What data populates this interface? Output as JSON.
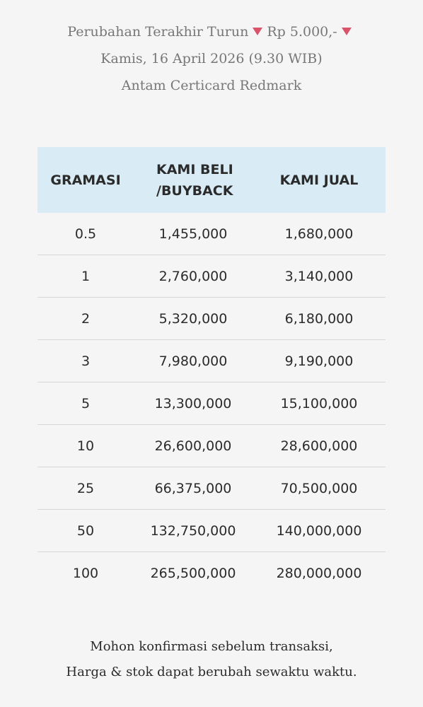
{
  "header": {
    "change_prefix": "Perubahan Terakhir Turun",
    "change_amount": "Rp 5.000,-",
    "direction_icon": "triangle-down-icon",
    "accent_color": "#d9546a",
    "date_line": "Kamis, 16 April 2026 (9.30 WIB)",
    "product_name": "Antam Certicard Redmark"
  },
  "table": {
    "header_bg": "#d9ecf6",
    "columns": [
      "GRAMASI",
      "KAMI BELI\n/BUYBACK",
      "KAMI JUAL"
    ],
    "col_beli_line1": "KAMI BELI",
    "col_beli_line2": "/BUYBACK",
    "rows": [
      {
        "gramasi": "0.5",
        "beli": "1,455,000",
        "jual": "1,680,000"
      },
      {
        "gramasi": "1",
        "beli": "2,760,000",
        "jual": "3,140,000"
      },
      {
        "gramasi": "2",
        "beli": "5,320,000",
        "jual": "6,180,000"
      },
      {
        "gramasi": "3",
        "beli": "7,980,000",
        "jual": "9,190,000"
      },
      {
        "gramasi": "5",
        "beli": "13,300,000",
        "jual": "15,100,000"
      },
      {
        "gramasi": "10",
        "beli": "26,600,000",
        "jual": "28,600,000"
      },
      {
        "gramasi": "25",
        "beli": "66,375,000",
        "jual": "70,500,000"
      },
      {
        "gramasi": "50",
        "beli": "132,750,000",
        "jual": "140,000,000"
      },
      {
        "gramasi": "100",
        "beli": "265,500,000",
        "jual": "280,000,000"
      }
    ]
  },
  "footer": {
    "line1": "Mohon konfirmasi sebelum transaksi,",
    "line2": "Harga & stok dapat berubah sewaktu waktu."
  }
}
